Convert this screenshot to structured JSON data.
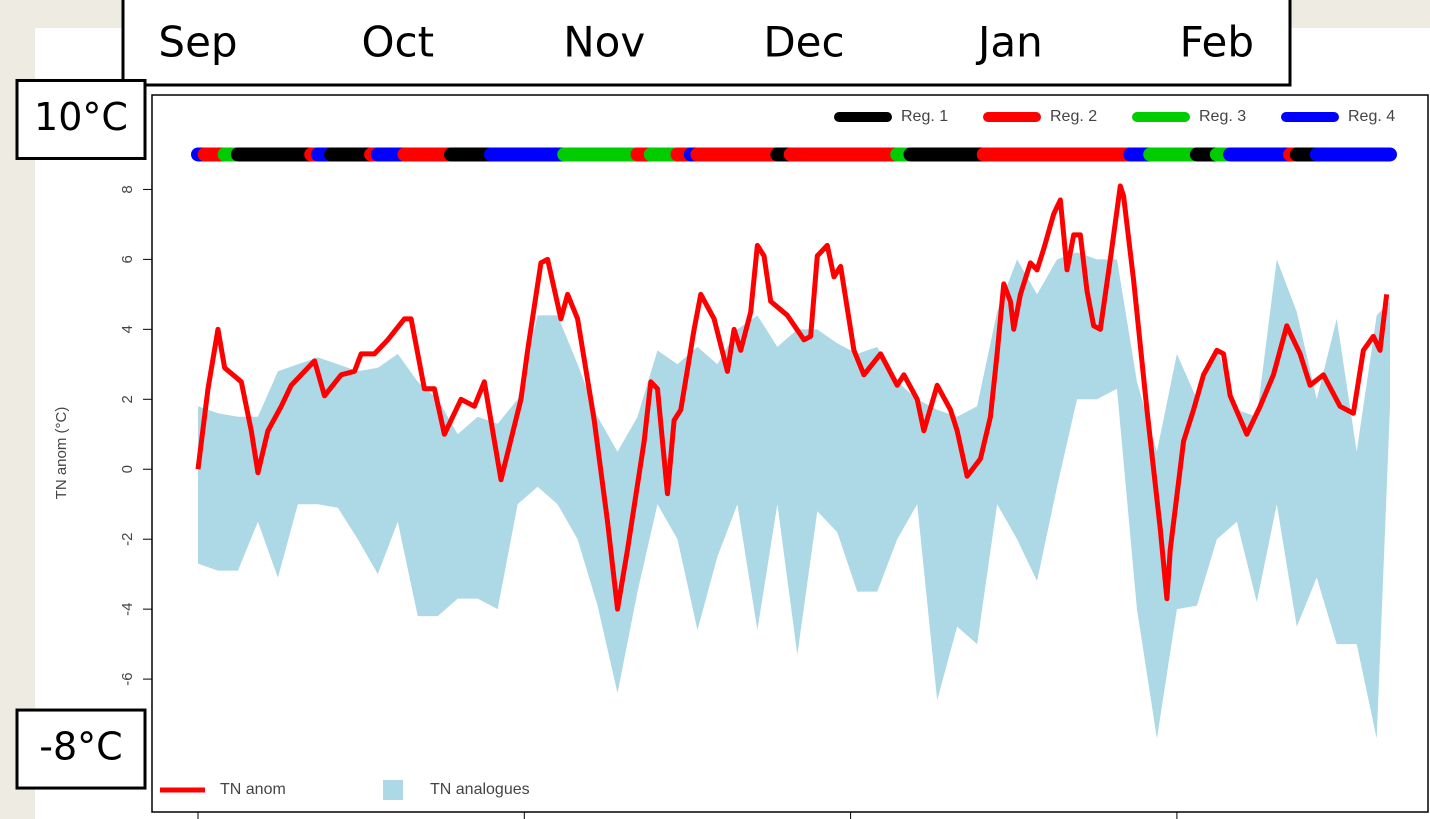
{
  "chart_data": {
    "type": "line",
    "y_label": "TN anom (°C)",
    "ylim": [
      -9.8,
      10.7
    ],
    "yticks": [
      -6,
      -4,
      -2,
      0,
      2,
      4,
      6,
      8
    ],
    "xlim": [
      0,
      179
    ],
    "xticks": [
      0,
      49,
      98,
      147
    ],
    "legend_position": "top-right",
    "series": [
      {
        "name": "TN anom",
        "color": "#ff0000",
        "x": [
          0,
          1.5,
          3,
          4,
          6.5,
          8,
          9,
          10.5,
          12.5,
          14,
          17.5,
          19,
          21.5,
          23.5,
          24.5,
          26.5,
          28.5,
          31,
          32,
          34,
          35.5,
          37,
          39.5,
          41.5,
          43,
          45.5,
          48.5,
          49.5,
          51.5,
          52.5,
          54.5,
          55.5,
          57,
          59.5,
          61.5,
          63,
          64.5,
          67,
          68,
          69,
          70.5,
          71.5,
          72.5,
          74.5,
          75.5,
          77.5,
          79.5,
          80.5,
          81.5,
          83,
          84,
          85,
          86,
          88.5,
          91,
          92,
          93,
          94.5,
          95.5,
          96.5,
          98.5,
          100,
          102.5,
          105,
          106,
          108,
          109,
          111,
          113,
          114,
          115.5,
          117.5,
          119,
          120,
          121,
          122,
          122.5,
          123.5,
          125,
          126,
          127,
          128.5,
          129.5,
          130.5,
          131.5,
          132.5,
          133.5,
          134.5,
          135.5,
          137,
          138.5,
          139,
          140.5,
          142.5,
          144.5,
          145.5,
          146,
          148,
          149.5,
          151,
          153,
          154,
          155,
          157.5,
          159.5,
          161.5,
          163.5,
          165.5,
          167,
          169,
          171.5,
          173.5,
          175,
          176.5,
          177.5,
          178.5
        ],
        "values": [
          0,
          2.3,
          4,
          2.9,
          2.5,
          1.1,
          -0.1,
          1.1,
          1.8,
          2.4,
          3.1,
          2.1,
          2.7,
          2.8,
          3.3,
          3.3,
          3.7,
          4.3,
          4.3,
          2.3,
          2.3,
          1,
          2,
          1.8,
          2.5,
          -0.3,
          2,
          3.4,
          5.9,
          6,
          4.3,
          5,
          4.3,
          1.4,
          -1.5,
          -4,
          -2.3,
          0.8,
          2.5,
          2.3,
          -0.7,
          1.4,
          1.7,
          4,
          5,
          4.3,
          2.8,
          4,
          3.4,
          4.5,
          6.4,
          6.1,
          4.8,
          4.4,
          3.7,
          3.8,
          6.1,
          6.4,
          5.5,
          5.8,
          3.4,
          2.7,
          3.3,
          2.4,
          2.7,
          2,
          1.1,
          2.4,
          1.7,
          1.1,
          -0.2,
          0.3,
          1.5,
          3.3,
          5.3,
          4.8,
          4,
          5,
          5.9,
          5.7,
          6.3,
          7.3,
          7.7,
          5.7,
          6.7,
          6.7,
          5.1,
          4.1,
          4,
          6,
          8.1,
          7.8,
          5.4,
          1.7,
          -1.7,
          -3.7,
          -2.3,
          0.8,
          1.7,
          2.7,
          3.4,
          3.3,
          2.1,
          1,
          1.8,
          2.7,
          4.1,
          3.3,
          2.4,
          2.7,
          1.8,
          1.6,
          3.4,
          3.8,
          3.4,
          5
        ]
      }
    ],
    "band": {
      "name": "TN analogues",
      "color": "#add8e6",
      "x": [
        0,
        3,
        6,
        9,
        12,
        15,
        18,
        21,
        24,
        27,
        30,
        33,
        36,
        39,
        42,
        45,
        48,
        51,
        54,
        57,
        60,
        63,
        66,
        69,
        72,
        75,
        78,
        81,
        84,
        87,
        90,
        93,
        96,
        99,
        102,
        105,
        108,
        111,
        114,
        117,
        120,
        123,
        126,
        129,
        132,
        135,
        138,
        141,
        144,
        147,
        150,
        153,
        156,
        159,
        162,
        165,
        168,
        171,
        174,
        177,
        179
      ],
      "lower": [
        -2.7,
        -2.9,
        -2.9,
        -1.5,
        -3.1,
        -1,
        -1,
        -1.1,
        -2,
        -3,
        -1.5,
        -4.2,
        -4.2,
        -3.7,
        -3.7,
        -4,
        -1,
        -0.5,
        -1,
        -2,
        -3.9,
        -6.4,
        -3.5,
        -1,
        -2,
        -4.6,
        -2.5,
        -1,
        -4.6,
        -1,
        -5.3,
        -1.2,
        -1.8,
        -3.5,
        -3.5,
        -2,
        -1,
        -6.6,
        -4.5,
        -5,
        -1,
        -2,
        -3.2,
        -0.5,
        2,
        2,
        2.3,
        -4,
        -7.7,
        -4,
        -3.9,
        -2,
        -1.5,
        -3.8,
        -1,
        -4.5,
        -3.1,
        -5,
        -5,
        -7.7,
        1.8
      ],
      "upper": [
        1.8,
        1.6,
        1.5,
        1.5,
        2.8,
        3,
        3.2,
        3,
        2.8,
        2.9,
        3.3,
        2.5,
        2,
        1,
        1.5,
        1.3,
        2,
        4.4,
        4.4,
        3,
        1.5,
        0.5,
        1.5,
        3.4,
        3,
        3.5,
        3,
        4,
        4.4,
        3.5,
        4,
        4,
        3.6,
        3.3,
        3.5,
        2.5,
        2,
        1.7,
        1.5,
        1.8,
        4.5,
        6,
        5,
        6,
        6.2,
        6,
        6,
        2.5,
        0.5,
        3.3,
        2,
        3.5,
        1.7,
        1.5,
        6,
        4.5,
        2,
        4.3,
        0.5,
        4.4,
        4.8
      ]
    },
    "regimes": {
      "y": 9,
      "classes": [
        {
          "name": "Reg. 1",
          "color": "#000000"
        },
        {
          "name": "Reg. 2",
          "color": "#ff0000"
        },
        {
          "name": "Reg. 3",
          "color": "#00cc00"
        },
        {
          "name": "Reg. 4",
          "color": "#0000ff"
        }
      ],
      "segments": [
        {
          "start": 0,
          "end": 1,
          "class": 3
        },
        {
          "start": 1,
          "end": 4,
          "class": 1
        },
        {
          "start": 4,
          "end": 6,
          "class": 2
        },
        {
          "start": 6,
          "end": 17,
          "class": 0
        },
        {
          "start": 17,
          "end": 18,
          "class": 1
        },
        {
          "start": 18,
          "end": 20,
          "class": 3
        },
        {
          "start": 20,
          "end": 26,
          "class": 0
        },
        {
          "start": 26,
          "end": 27,
          "class": 1
        },
        {
          "start": 27,
          "end": 31,
          "class": 3
        },
        {
          "start": 31,
          "end": 38,
          "class": 1
        },
        {
          "start": 38,
          "end": 44,
          "class": 0
        },
        {
          "start": 44,
          "end": 55,
          "class": 3
        },
        {
          "start": 55,
          "end": 66,
          "class": 2
        },
        {
          "start": 66,
          "end": 68,
          "class": 1
        },
        {
          "start": 68,
          "end": 72,
          "class": 2
        },
        {
          "start": 72,
          "end": 74,
          "class": 1
        },
        {
          "start": 74,
          "end": 75,
          "class": 3
        },
        {
          "start": 75,
          "end": 87,
          "class": 1
        },
        {
          "start": 87,
          "end": 89,
          "class": 0
        },
        {
          "start": 89,
          "end": 105,
          "class": 1
        },
        {
          "start": 105,
          "end": 107,
          "class": 2
        },
        {
          "start": 107,
          "end": 118,
          "class": 0
        },
        {
          "start": 118,
          "end": 140,
          "class": 1
        },
        {
          "start": 140,
          "end": 143,
          "class": 3
        },
        {
          "start": 143,
          "end": 150,
          "class": 2
        },
        {
          "start": 150,
          "end": 153,
          "class": 0
        },
        {
          "start": 153,
          "end": 155,
          "class": 2
        },
        {
          "start": 155,
          "end": 164,
          "class": 3
        },
        {
          "start": 164,
          "end": 165,
          "class": 1
        },
        {
          "start": 165,
          "end": 168,
          "class": 0
        },
        {
          "start": 168,
          "end": 179,
          "class": 3
        }
      ]
    },
    "month_labels": [
      {
        "label": "Sep",
        "x": 0
      },
      {
        "label": "Oct",
        "x": 30
      },
      {
        "label": "Nov",
        "x": 61
      },
      {
        "label": "Dec",
        "x": 91
      },
      {
        "label": "Jan",
        "x": 122
      },
      {
        "label": "Feb",
        "x": 153
      }
    ],
    "annotations": [
      {
        "label": "10°C",
        "y": 10
      },
      {
        "label": "-8°C",
        "y": -8
      }
    ]
  }
}
